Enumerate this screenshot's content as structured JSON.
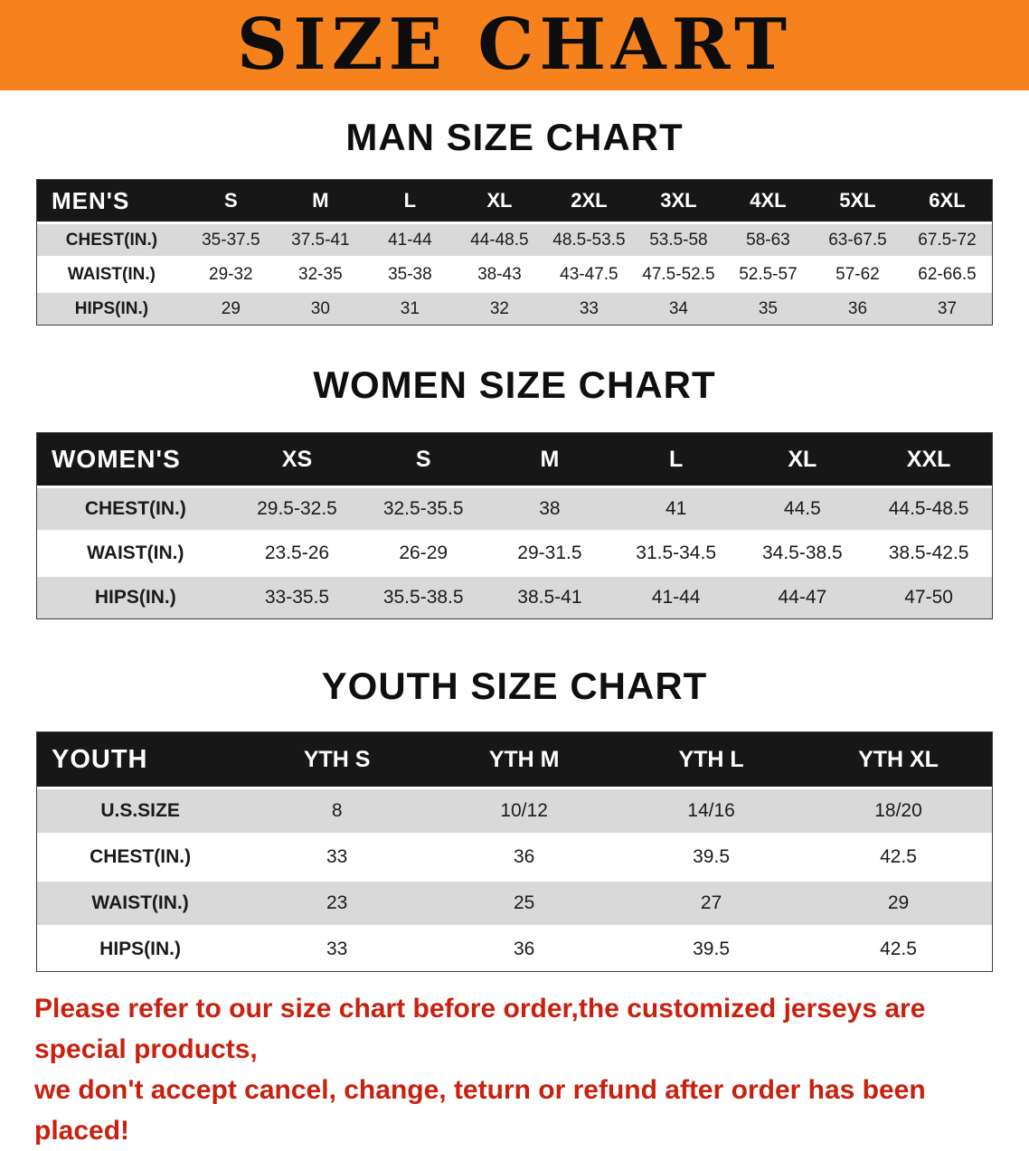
{
  "banner": {
    "title": "SIZE CHART"
  },
  "colors": {
    "banner-bg": "#F5821C",
    "header-bg": "#171717",
    "stripe": "#D9D9D9",
    "notice-red": "#C9200F"
  },
  "chart_data": [
    {
      "type": "table",
      "title": "MAN SIZE CHART",
      "header": [
        "MEN'S",
        "S",
        "M",
        "L",
        "XL",
        "2XL",
        "3XL",
        "4XL",
        "5XL",
        "6XL"
      ],
      "rows": [
        [
          "CHEST(IN.)",
          "35-37.5",
          "37.5-41",
          "41-44",
          "44-48.5",
          "48.5-53.5",
          "53.5-58",
          "58-63",
          "63-67.5",
          "67.5-72"
        ],
        [
          "WAIST(IN.)",
          "29-32",
          "32-35",
          "35-38",
          "38-43",
          "43-47.5",
          "47.5-52.5",
          "52.5-57",
          "57-62",
          "62-66.5"
        ],
        [
          "HIPS(IN.)",
          "29",
          "30",
          "31",
          "32",
          "33",
          "34",
          "35",
          "36",
          "37"
        ]
      ]
    },
    {
      "type": "table",
      "title": "WOMEN SIZE CHART",
      "header": [
        "WOMEN'S",
        "XS",
        "S",
        "M",
        "L",
        "XL",
        "XXL"
      ],
      "rows": [
        [
          "CHEST(IN.)",
          "29.5-32.5",
          "32.5-35.5",
          "38",
          "41",
          "44.5",
          "44.5-48.5"
        ],
        [
          "WAIST(IN.)",
          "23.5-26",
          "26-29",
          "29-31.5",
          "31.5-34.5",
          "34.5-38.5",
          "38.5-42.5"
        ],
        [
          "HIPS(IN.)",
          "33-35.5",
          "35.5-38.5",
          "38.5-41",
          "41-44",
          "44-47",
          "47-50"
        ]
      ]
    },
    {
      "type": "table",
      "title": "YOUTH SIZE CHART",
      "header": [
        "YOUTH",
        "YTH S",
        "YTH M",
        "YTH L",
        "YTH XL"
      ],
      "rows": [
        [
          "U.S.SIZE",
          "8",
          "10/12",
          "14/16",
          "18/20"
        ],
        [
          "CHEST(IN.)",
          "33",
          "36",
          "39.5",
          "42.5"
        ],
        [
          "WAIST(IN.)",
          "23",
          "25",
          "27",
          "29"
        ],
        [
          "HIPS(IN.)",
          "33",
          "36",
          "39.5",
          "42.5"
        ]
      ]
    }
  ],
  "footer": {
    "line1": "Please refer to our size chart before order,the customized jerseys are special products,",
    "line2": "we don't accept cancel, change, teturn or refund after order has been placed!"
  }
}
